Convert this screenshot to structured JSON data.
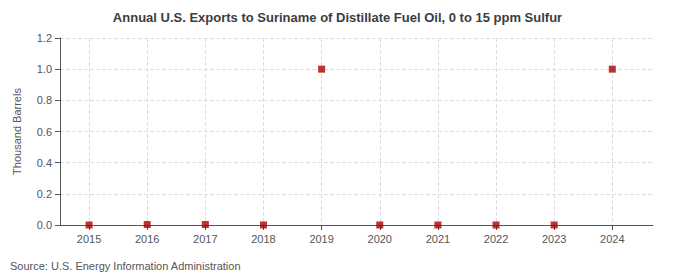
{
  "chart_data": {
    "type": "scatter",
    "title": "Annual U.S. Exports to Suriname of Distillate Fuel Oil, 0 to 15 ppm Sulfur",
    "ylabel": "Thousand Barrels",
    "annotations": [
      "Source: U.S. Energy Information Administration"
    ],
    "x": [
      2015,
      2016,
      2017,
      2018,
      2019,
      2020,
      2021,
      2022,
      2023,
      2024
    ],
    "values": [
      0,
      0.003,
      0.003,
      0,
      1.0,
      0,
      0,
      0,
      0,
      1.0
    ],
    "color": "#aa0000",
    "marker": "square",
    "xlim": [
      2014.5,
      2024.7
    ],
    "ylim": [
      0.0,
      1.2
    ],
    "xticks": [
      2015,
      2016,
      2017,
      2018,
      2019,
      2020,
      2021,
      2022,
      2023,
      2024
    ],
    "yticks": [
      {
        "value": 0.0,
        "label": "0.0"
      },
      0.2,
      0.4,
      0.6,
      0.8,
      {
        "value": 1.0,
        "label": "1.0"
      },
      1.2
    ],
    "grid": true
  }
}
